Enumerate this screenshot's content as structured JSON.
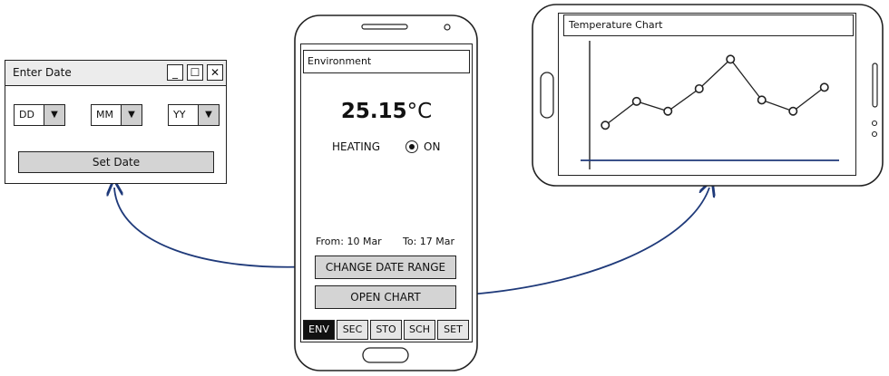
{
  "dialog": {
    "title": "Enter Date",
    "controls": {
      "minimize": "_",
      "maximize": "☐",
      "close": "✕"
    },
    "selects": [
      {
        "value": "DD",
        "arrow": "▼"
      },
      {
        "value": "MM",
        "arrow": "▼"
      },
      {
        "value": "YY",
        "arrow": "▼"
      }
    ],
    "set_button": "Set Date"
  },
  "phone": {
    "title": "Environment",
    "temperature": "25.15",
    "unit": "°C",
    "heating_label": "HEATING",
    "heating_state": "ON",
    "from": "From: 10 Mar",
    "to": "To: 17 Mar",
    "change_range_button": "CHANGE DATE RANGE",
    "open_chart_button": "OPEN CHART",
    "tabs": [
      "ENV",
      "SEC",
      "STO",
      "SCH",
      "SET"
    ],
    "active_tab": "ENV"
  },
  "chart_screen": {
    "title": "Temperature Chart"
  },
  "chart_data": {
    "type": "line",
    "title": "Temperature Chart",
    "x": [
      1,
      2,
      3,
      4,
      5,
      6,
      7,
      8
    ],
    "values": [
      2.5,
      4.2,
      3.5,
      5.1,
      7.2,
      4.3,
      3.5,
      5.2
    ],
    "ylim": [
      0,
      8
    ],
    "xlim": [
      0.5,
      8.5
    ],
    "grid": false,
    "xlabel": "",
    "ylabel": ""
  },
  "colors": {
    "connector": "#1f3a7a",
    "chart_axis": "#1f3a7a",
    "button_fill": "#d4d4d4",
    "active_tab": "#111111"
  }
}
